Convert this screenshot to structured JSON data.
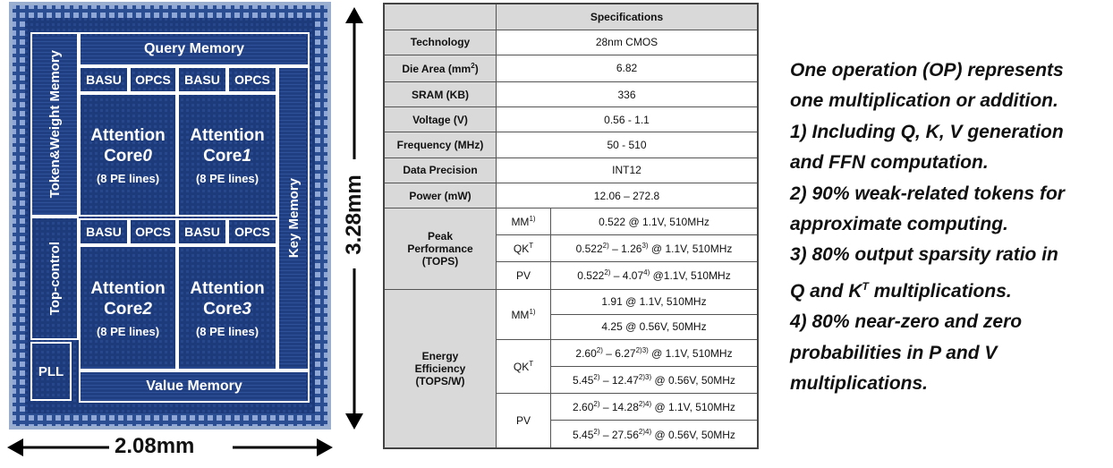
{
  "die": {
    "token_weight_memory": "Token&Weight Memory",
    "top_control": "Top-control",
    "pll": "PLL",
    "query_memory": "Query Memory",
    "key_memory": "Key Memory",
    "value_memory": "Value Memory",
    "basu": "BASU",
    "opcs": "OPCS",
    "cores": [
      {
        "name": "Attention",
        "core": "Core",
        "index": "0",
        "sub": "(8 PE lines)"
      },
      {
        "name": "Attention",
        "core": "Core",
        "index": "1",
        "sub": "(8 PE lines)"
      },
      {
        "name": "Attention",
        "core": "Core",
        "index": "2",
        "sub": "(8 PE lines)"
      },
      {
        "name": "Attention",
        "core": "Core",
        "index": "3",
        "sub": "(8 PE lines)"
      }
    ],
    "height_label": "3.28mm",
    "width_label": "2.08mm",
    "colors": {
      "die_bg": "#1a3f85",
      "die_frame": "#8ea2c8"
    }
  },
  "spec": {
    "header": "Specifications",
    "rows": [
      {
        "label": "Technology",
        "value": "28nm CMOS"
      },
      {
        "label": "Die Area (mm",
        "label_sup": "2",
        "label_end": ")",
        "value": "6.82"
      },
      {
        "label": "SRAM (KB)",
        "value": "336"
      },
      {
        "label": "Voltage (V)",
        "value": "0.56 - 1.1"
      },
      {
        "label": "Frequency (MHz)",
        "value": "50 - 510"
      },
      {
        "label": "Data Precision",
        "value": "INT12"
      },
      {
        "label": "Power (mW)",
        "value": "12.06 – 272.8"
      }
    ],
    "peak": {
      "label_l1": "Peak",
      "label_l2": "Performance",
      "label_l3": "(TOPS)",
      "mm": "MM",
      "mm_sup": "1)",
      "mm_value": "0.522 @ 1.1V, 510MHz",
      "qk": "QK",
      "qk_sup": "T",
      "qk_v1": "0.522",
      "qk_s1": "2)",
      "qk_v2": " – 1.26",
      "qk_s2": "3)",
      "qk_v3": " @ 1.1V, 510MHz",
      "pv": "PV",
      "pv_v1": "0.522",
      "pv_s1": "2)",
      "pv_v2": " – 4.07",
      "pv_s2": "4)",
      "pv_v3": " @1.1V, 510MHz"
    },
    "energy": {
      "label_l1": "Energy",
      "label_l2": "Efficiency",
      "label_l3": "(TOPS/W)",
      "mm": "MM",
      "mm_sup": "1)",
      "mm_value1": "1.91 @ 1.1V, 510MHz",
      "mm_value2": "4.25 @ 0.56V, 50MHz",
      "qk": "QK",
      "qk_sup": "T",
      "qk1_a": "2.60",
      "qk1_s1": "2)",
      "qk1_b": " – 6.27",
      "qk1_s2": "2)3)",
      "qk1_c": " @ 1.1V, 510MHz",
      "qk2_a": "5.45",
      "qk2_s1": "2)",
      "qk2_b": " – 12.47",
      "qk2_s2": "2)3)",
      "qk2_c": " @ 0.56V, 50MHz",
      "pv": "PV",
      "pv1_a": "2.60",
      "pv1_s1": "2)",
      "pv1_b": " – 14.28",
      "pv1_s2": "2)4)",
      "pv1_c": " @ 1.1V, 510MHz",
      "pv2_a": "5.45",
      "pv2_s1": "2)",
      "pv2_b": " – 27.56",
      "pv2_s2": "2)4)",
      "pv2_c": " @ 0.56V, 50MHz"
    }
  },
  "notes": {
    "l1": "One operation (OP) represents",
    "l2": "one multiplication or addition.",
    "l3": "1) Including Q, K, V generation",
    "l4": "and FFN computation.",
    "l5": "2) 90% weak-related tokens for",
    "l6": "approximate computing.",
    "l7": "3) 80% output sparsity ratio in",
    "l8a": "Q and K",
    "l8sup": "T",
    "l8b": " multiplications.",
    "l9": "4) 80% near-zero and zero",
    "l10": "probabilities in P and V",
    "l11": "multiplications."
  }
}
